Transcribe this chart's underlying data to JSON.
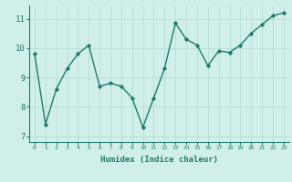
{
  "x": [
    0,
    1,
    2,
    3,
    4,
    5,
    6,
    7,
    8,
    9,
    10,
    11,
    12,
    13,
    14,
    15,
    16,
    17,
    18,
    19,
    20,
    21,
    22,
    23
  ],
  "y": [
    9.8,
    7.4,
    8.6,
    9.3,
    9.8,
    10.1,
    8.7,
    8.8,
    8.7,
    8.3,
    7.3,
    8.3,
    9.3,
    10.85,
    10.3,
    10.1,
    9.4,
    9.9,
    9.85,
    10.1,
    10.5,
    10.8,
    11.1,
    11.2
  ],
  "xlabel": "Humidex (Indice chaleur)",
  "ylim": [
    6.8,
    11.45
  ],
  "xlim": [
    -0.5,
    23.5
  ],
  "yticks": [
    7,
    8,
    9,
    10,
    11
  ],
  "xtick_labels": [
    "0",
    "1",
    "2",
    "3",
    "4",
    "5",
    "6",
    "7",
    "8",
    "9",
    "10",
    "11",
    "12",
    "13",
    "14",
    "15",
    "16",
    "17",
    "18",
    "19",
    "20",
    "21",
    "22",
    "23"
  ],
  "line_color": "#1e7a6e",
  "bg_color": "#d0eeea",
  "grid_color": "#b8ddd8",
  "marker": "D",
  "marker_size": 2.2,
  "line_width": 1.0
}
